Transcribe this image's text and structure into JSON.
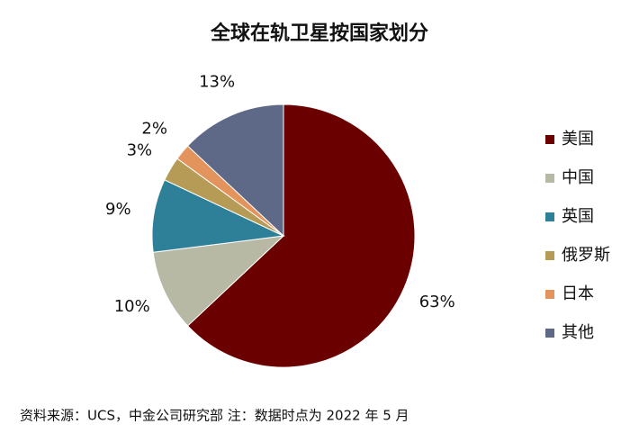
{
  "chart_data": {
    "type": "pie",
    "title": "全球在轨卫星按国家划分",
    "categories": [
      "美国",
      "中国",
      "英国",
      "俄罗斯",
      "日本",
      "其他"
    ],
    "values": [
      63,
      10,
      9,
      3,
      2,
      13
    ],
    "value_labels": [
      "63%",
      "10%",
      "9%",
      "3%",
      "2%",
      "13%"
    ],
    "colors": [
      "#6b0000",
      "#b7b9a4",
      "#2e8099",
      "#b69b57",
      "#e3935c",
      "#5e6987"
    ],
    "legend": "right",
    "source": "资料来源：UCS，中金公司研究部  注：数据时点为 2022 年 5 月"
  }
}
